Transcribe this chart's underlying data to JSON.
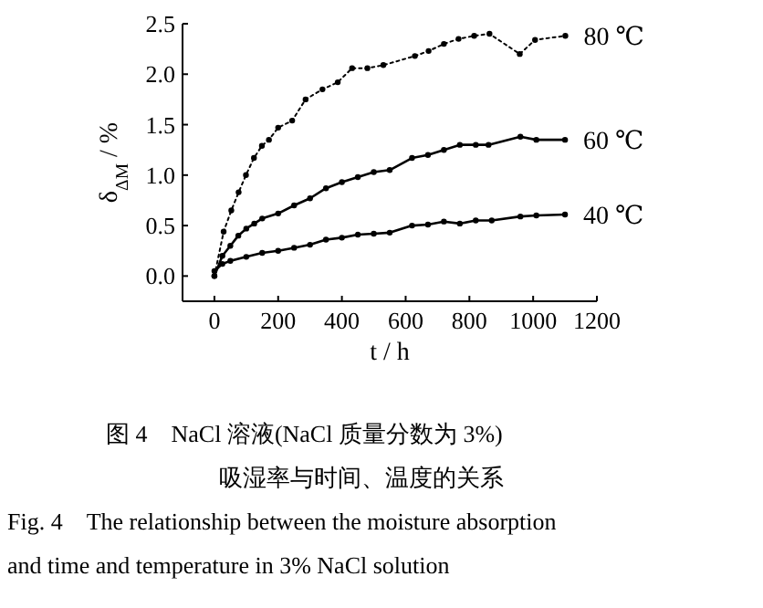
{
  "chart_data": {
    "type": "line",
    "xlabel": "t / h",
    "ylabel": "δ$_{ΔM}$ / %",
    "xlim": [
      -100,
      1200
    ],
    "ylim": [
      -0.25,
      2.5
    ],
    "xticks": [
      0,
      200,
      400,
      600,
      800,
      1000,
      1200
    ],
    "yticks": [
      {
        "value": 0,
        "label": "0.0"
      },
      {
        "value": 0.5,
        "label": "0.5"
      },
      {
        "value": 1,
        "label": "1.0"
      },
      {
        "value": 1.5,
        "label": "1.5"
      },
      {
        "value": 2,
        "label": "2.0"
      },
      {
        "value": 2.5,
        "label": "2.5"
      }
    ],
    "grid": false,
    "legend": false,
    "marker": "circle",
    "series": [
      {
        "name": "80 ℃",
        "color": "#000000",
        "line_style": "dotted",
        "x": [
          0,
          29,
          53,
          76,
          99,
          124,
          149,
          171,
          200,
          244,
          286,
          339,
          387,
          432,
          480,
          530,
          629,
          672,
          720,
          766,
          815,
          863,
          958,
          1006,
          1101
        ],
        "values": [
          0,
          0.44,
          0.65,
          0.83,
          1.0,
          1.17,
          1.29,
          1.35,
          1.47,
          1.54,
          1.75,
          1.85,
          1.92,
          2.06,
          2.06,
          2.09,
          2.18,
          2.23,
          2.3,
          2.35,
          2.38,
          2.4,
          2.2,
          2.34,
          2.38
        ]
      },
      {
        "name": "60 ℃",
        "color": "#000000",
        "line_style": "solid",
        "x": [
          0,
          25,
          50,
          75,
          100,
          125,
          150,
          200,
          250,
          300,
          350,
          400,
          450,
          500,
          550,
          620,
          670,
          720,
          770,
          820,
          860,
          960,
          1010,
          1100
        ],
        "values": [
          0,
          0.2,
          0.3,
          0.4,
          0.47,
          0.52,
          0.57,
          0.62,
          0.7,
          0.77,
          0.87,
          0.93,
          0.98,
          1.03,
          1.05,
          1.17,
          1.2,
          1.25,
          1.3,
          1.3,
          1.3,
          1.38,
          1.35,
          1.35
        ]
      },
      {
        "name": "40 ℃",
        "color": "#000000",
        "line_style": "solid",
        "x": [
          0,
          25,
          50,
          100,
          150,
          200,
          250,
          300,
          350,
          400,
          450,
          500,
          550,
          620,
          670,
          720,
          770,
          820,
          870,
          960,
          1010,
          1100
        ],
        "values": [
          0.05,
          0.12,
          0.15,
          0.19,
          0.23,
          0.25,
          0.28,
          0.31,
          0.36,
          0.38,
          0.41,
          0.42,
          0.43,
          0.5,
          0.51,
          0.54,
          0.52,
          0.55,
          0.55,
          0.59,
          0.6,
          0.61
        ]
      }
    ],
    "annotations": [
      "图 4　NaCl 溶液(NaCl 质量分数为 3%)",
      "吸湿率与时间、温度的关系",
      "Fig. 4　The relationship between the moisture absorption",
      "and time and temperature in 3% NaCl solution"
    ]
  }
}
